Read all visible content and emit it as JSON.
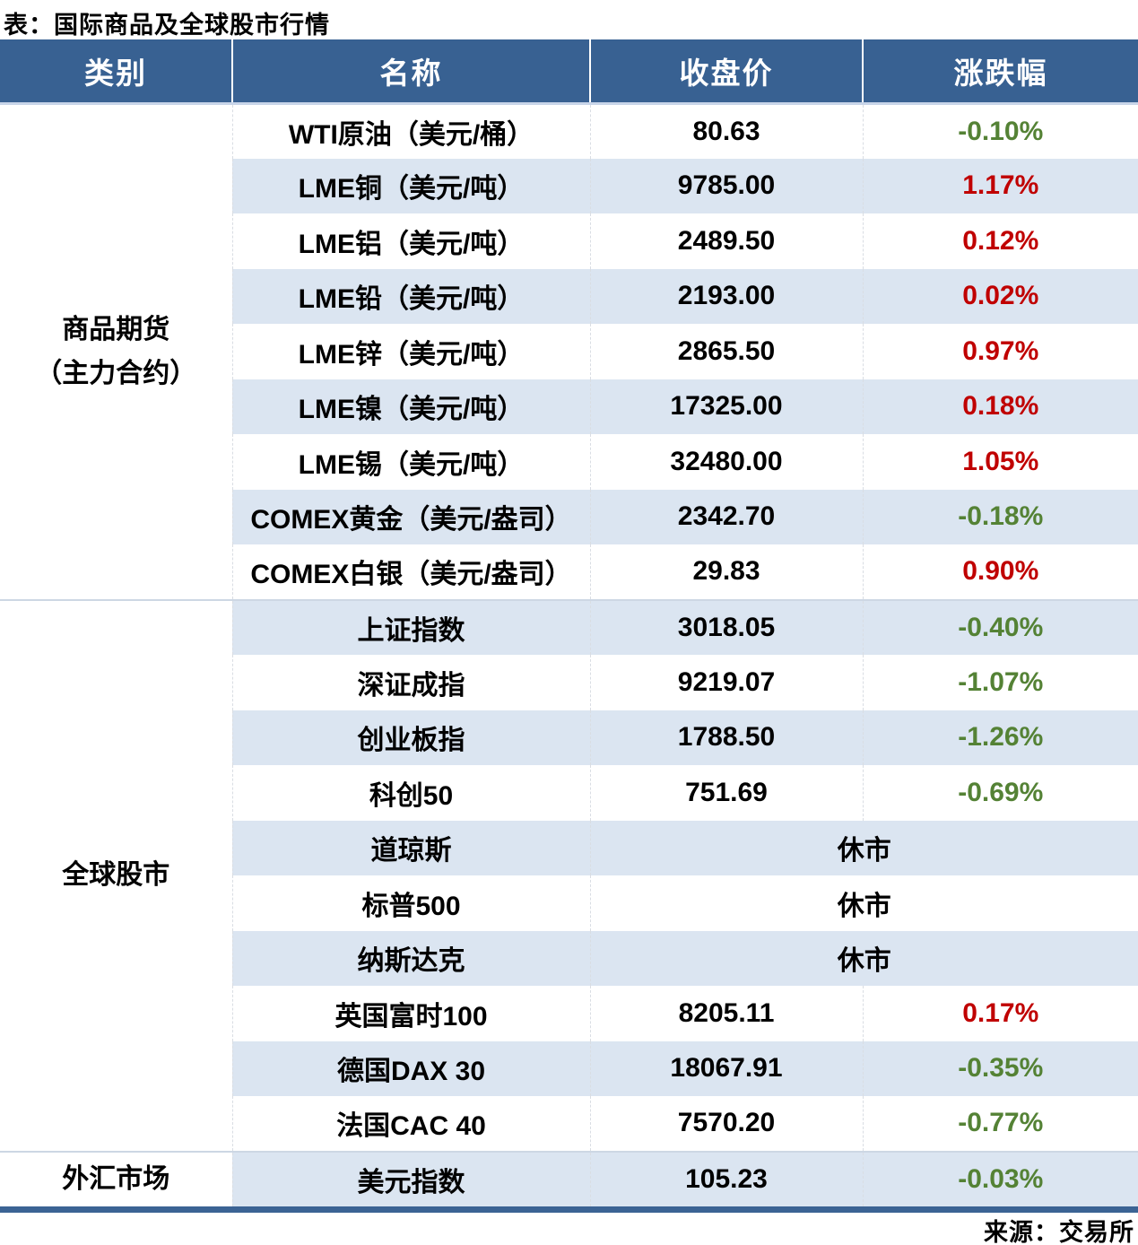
{
  "title": "表：国际商品及全球股市行情",
  "source": "来源：交易所",
  "colors": {
    "header_bg": "#386192",
    "stripe": "#dbe5f1",
    "up_red": "#c00000",
    "down_green": "#548235",
    "accent_bar": "#3b6394"
  },
  "table": {
    "headers": [
      "类别",
      "名称",
      "收盘价",
      "涨跌幅"
    ],
    "closed_label": "休市",
    "sections": [
      {
        "category": [
          "商品期货",
          "（主力合约）"
        ],
        "rows": [
          {
            "name": "WTI原油（美元/桶）",
            "close": "80.63",
            "change": "-0.10%",
            "direction": "down"
          },
          {
            "name": "LME铜（美元/吨）",
            "close": "9785.00",
            "change": "1.17%",
            "direction": "up"
          },
          {
            "name": "LME铝（美元/吨）",
            "close": "2489.50",
            "change": "0.12%",
            "direction": "up"
          },
          {
            "name": "LME铅（美元/吨）",
            "close": "2193.00",
            "change": "0.02%",
            "direction": "up"
          },
          {
            "name": "LME锌（美元/吨）",
            "close": "2865.50",
            "change": "0.97%",
            "direction": "up"
          },
          {
            "name": "LME镍（美元/吨）",
            "close": "17325.00",
            "change": "0.18%",
            "direction": "up"
          },
          {
            "name": "LME锡（美元/吨）",
            "close": "32480.00",
            "change": "1.05%",
            "direction": "up"
          },
          {
            "name": "COMEX黄金（美元/盎司）",
            "close": "2342.70",
            "change": "-0.18%",
            "direction": "down"
          },
          {
            "name": "COMEX白银（美元/盎司）",
            "close": "29.83",
            "change": "0.90%",
            "direction": "up"
          }
        ]
      },
      {
        "category": [
          "全球股市"
        ],
        "rows": [
          {
            "name": "上证指数",
            "close": "3018.05",
            "change": "-0.40%",
            "direction": "down"
          },
          {
            "name": "深证成指",
            "close": "9219.07",
            "change": "-1.07%",
            "direction": "down"
          },
          {
            "name": "创业板指",
            "close": "1788.50",
            "change": "-1.26%",
            "direction": "down"
          },
          {
            "name": "科创50",
            "close": "751.69",
            "change": "-0.69%",
            "direction": "down"
          },
          {
            "name": "道琼斯",
            "status": "休市"
          },
          {
            "name": "标普500",
            "status": "休市"
          },
          {
            "name": "纳斯达克",
            "status": "休市"
          },
          {
            "name": "英国富时100",
            "close": "8205.11",
            "change": "0.17%",
            "direction": "up"
          },
          {
            "name": "德国DAX 30",
            "close": "18067.91",
            "change": "-0.35%",
            "direction": "down"
          },
          {
            "name": "法国CAC 40",
            "close": "7570.20",
            "change": "-0.77%",
            "direction": "down"
          }
        ]
      },
      {
        "category": [
          "外汇市场"
        ],
        "rows": [
          {
            "name": "美元指数",
            "close": "105.23",
            "change": "-0.03%",
            "direction": "down"
          }
        ]
      }
    ]
  },
  "chart_data": {
    "type": "table",
    "title": "表：国际商品及全球股市行情",
    "columns": [
      "类别",
      "名称",
      "收盘价",
      "涨跌幅"
    ],
    "rows": [
      [
        "商品期货（主力合约）",
        "WTI原油（美元/桶）",
        80.63,
        "-0.10%"
      ],
      [
        "商品期货（主力合约）",
        "LME铜（美元/吨）",
        9785.0,
        "1.17%"
      ],
      [
        "商品期货（主力合约）",
        "LME铝（美元/吨）",
        2489.5,
        "0.12%"
      ],
      [
        "商品期货（主力合约）",
        "LME铅（美元/吨）",
        2193.0,
        "0.02%"
      ],
      [
        "商品期货（主力合约）",
        "LME锌（美元/吨）",
        2865.5,
        "0.97%"
      ],
      [
        "商品期货（主力合约）",
        "LME镍（美元/吨）",
        17325.0,
        "0.18%"
      ],
      [
        "商品期货（主力合约）",
        "LME锡（美元/吨）",
        32480.0,
        "1.05%"
      ],
      [
        "商品期货（主力合约）",
        "COMEX黄金（美元/盎司）",
        2342.7,
        "-0.18%"
      ],
      [
        "商品期货（主力合约）",
        "COMEX白银（美元/盎司）",
        29.83,
        "0.90%"
      ],
      [
        "全球股市",
        "上证指数",
        3018.05,
        "-0.40%"
      ],
      [
        "全球股市",
        "深证成指",
        9219.07,
        "-1.07%"
      ],
      [
        "全球股市",
        "创业板指",
        1788.5,
        "-1.26%"
      ],
      [
        "全球股市",
        "科创50",
        751.69,
        "-0.69%"
      ],
      [
        "全球股市",
        "道琼斯",
        "休市",
        "休市"
      ],
      [
        "全球股市",
        "标普500",
        "休市",
        "休市"
      ],
      [
        "全球股市",
        "纳斯达克",
        "休市",
        "休市"
      ],
      [
        "全球股市",
        "英国富时100",
        8205.11,
        "0.17%"
      ],
      [
        "全球股市",
        "德国DAX 30",
        18067.91,
        "-0.35%"
      ],
      [
        "全球股市",
        "法国CAC 40",
        7570.2,
        "-0.77%"
      ],
      [
        "外汇市场",
        "美元指数",
        105.23,
        "-0.03%"
      ]
    ],
    "notes": "涨为红色(#c00000)，跌为绿色(#548235)；来源：交易所"
  }
}
